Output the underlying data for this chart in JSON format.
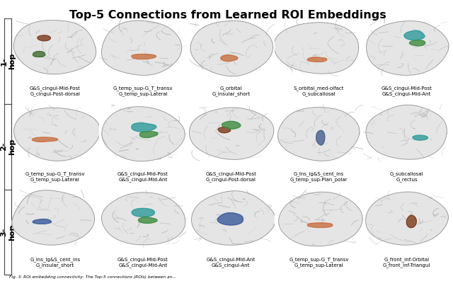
{
  "title": "Top-5 Connections from Learned ROI Embeddings",
  "title_fontsize": 11.5,
  "title_fontweight": "bold",
  "row_labels": [
    "1-\nhop",
    "2-\nhop",
    "3-\nhop"
  ],
  "row_label_fontsize": 8,
  "row_label_fontweight": "bold",
  "captions": [
    [
      "G&S_cingul-Mid-Post\nG_cingul-Post-dorsal",
      "G_temp_sup-G_T_transv\nG_temp_sup-Lateral",
      "G_orbital\nG_insular_short",
      "S_orbital_med-olfact\nG_subcallosal",
      "G&S_cingul-Mid-Post\nG&S_cingul-Mid-Ant"
    ],
    [
      "G_temp_sup-G_T_transv\nG_temp_sup-Lateral",
      "G&S_cingul-Mid-Post\nG&S_cingul-Mid-Ant",
      "G&S_cingul-Mid-Post\nG_cingul-Post-dorsal",
      "G_Ins_lg&S_cent_ins\nG_temp_sup-Plan_polar",
      "G_subcallosal\nG_rectus"
    ],
    [
      "G_Ins_lg&S_cent_ins\nG_insular_short",
      "G&S_cingul-Mid-Post\nG&S_cingul-Mid-Ant",
      "G&S_cingul-Mid-Ant\nG&S_cingul-Ant",
      "G_temp_sup-G_T_transv\nG_temp_sup-Lateral",
      "G_front_inf-Orbital\nG_front_inf-Triangul"
    ]
  ],
  "caption_fontsize": 5.0,
  "background_color": "#ffffff",
  "border_color": "#444444",
  "fig_width": 6.4,
  "fig_height": 3.97,
  "footer_text": "Fig. 3: ROI embedding connectivity: The Top-5 connections (ROIs) between an...",
  "brain_base_color": [
    0.88,
    0.88,
    0.88
  ],
  "brain_fold_color": [
    0.75,
    0.75,
    0.75
  ],
  "brain_light_color": [
    0.96,
    0.96,
    0.96
  ],
  "region_colors": [
    [
      [
        "#7B3B1A",
        "#3D6B2C"
      ],
      [
        "#C87040"
      ],
      [
        "#C87040"
      ],
      [
        "#C87040"
      ],
      [
        "#2E9B9B",
        "#3D8B40"
      ]
    ],
    [
      [
        "#C87040"
      ],
      [
        "#2E9B9B",
        "#3D8B40"
      ],
      [
        "#7B3B1A",
        "#3D8B40"
      ],
      [
        "#445E8B"
      ],
      [
        "#2E9B9B"
      ]
    ],
    [
      [
        "#3A5A9B"
      ],
      [
        "#2E9B9B",
        "#3D8B40"
      ],
      [
        "#3A5A9B"
      ],
      [
        "#C87040"
      ],
      [
        "#7B3B1A"
      ]
    ]
  ],
  "region_positions": [
    [
      [
        [
          0.38,
          0.68
        ],
        [
          0.32,
          0.42
        ]
      ],
      [
        [
          0.5,
          0.38
        ]
      ],
      [
        [
          0.48,
          0.35
        ]
      ],
      [
        [
          0.48,
          0.33
        ]
      ],
      [
        [
          0.58,
          0.72
        ],
        [
          0.62,
          0.6
        ]
      ]
    ],
    [
      [
        [
          0.38,
          0.42
        ]
      ],
      [
        [
          0.5,
          0.62
        ],
        [
          0.55,
          0.5
        ]
      ],
      [
        [
          0.42,
          0.58
        ],
        [
          0.5,
          0.65
        ]
      ],
      [
        [
          0.52,
          0.45
        ]
      ],
      [
        [
          0.65,
          0.45
        ]
      ]
    ],
    [
      [
        [
          0.35,
          0.48
        ]
      ],
      [
        [
          0.5,
          0.62
        ],
        [
          0.55,
          0.5
        ]
      ],
      [
        [
          0.5,
          0.52
        ]
      ],
      [
        [
          0.52,
          0.42
        ]
      ],
      [
        [
          0.55,
          0.48
        ]
      ]
    ]
  ],
  "region_sizes": [
    [
      [
        [
          0.14,
          0.09
        ],
        [
          0.14,
          0.09
        ]
      ],
      [
        [
          0.28,
          0.08
        ]
      ],
      [
        [
          0.2,
          0.1
        ]
      ],
      [
        [
          0.22,
          0.08
        ]
      ],
      [
        [
          0.22,
          0.14
        ],
        [
          0.18,
          0.1
        ]
      ]
    ],
    [
      [
        [
          0.3,
          0.08
        ]
      ],
      [
        [
          0.25,
          0.14
        ],
        [
          0.2,
          0.1
        ]
      ],
      [
        [
          0.14,
          0.09
        ],
        [
          0.22,
          0.12
        ]
      ],
      [
        [
          0.1,
          0.25
        ]
      ],
      [
        [
          0.18,
          0.08
        ]
      ]
    ],
    [
      [
        [
          0.2,
          0.08
        ]
      ],
      [
        [
          0.25,
          0.14
        ],
        [
          0.2,
          0.1
        ]
      ],
      [
        [
          0.32,
          0.2
        ]
      ],
      [
        [
          0.3,
          0.08
        ]
      ],
      [
        [
          0.12,
          0.2
        ]
      ]
    ]
  ]
}
